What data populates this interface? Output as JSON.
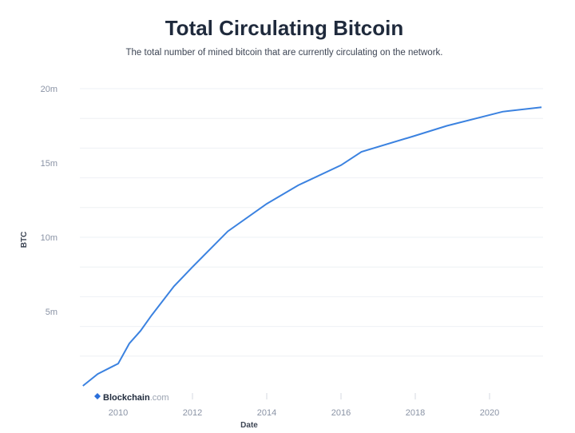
{
  "chart_data": {
    "type": "line",
    "title": "Total Circulating Bitcoin",
    "subtitle": "The total number of mined bitcoin that are currently circulating on the network.",
    "xlabel": "Date",
    "ylabel": "BTC",
    "xlim": [
      2009.05,
      2021.4
    ],
    "ylim": [
      0,
      20
    ],
    "x_ticks": [
      "2010",
      "2012",
      "2014",
      "2016",
      "2018",
      "2020"
    ],
    "y_ticks": [
      "5m",
      "10m",
      "15m",
      "20m"
    ],
    "grid": true,
    "color": "#3b82e0",
    "watermark": "Blockchain.com",
    "series": [
      {
        "x": [
          2009.05,
          2009.45,
          2009.8,
          2010.0,
          2010.3,
          2010.6,
          2010.9,
          2011.5,
          2012.0,
          2012.95,
          2014.0,
          2014.85,
          2016.0,
          2016.55,
          2017.95,
          2018.85,
          2020.35,
          2021.4
        ],
        "y": [
          0,
          0.8,
          1.25,
          1.5,
          2.85,
          3.7,
          4.75,
          6.7,
          8.0,
          10.4,
          12.25,
          13.5,
          14.85,
          15.75,
          16.8,
          17.5,
          18.45,
          18.75
        ]
      }
    ]
  }
}
